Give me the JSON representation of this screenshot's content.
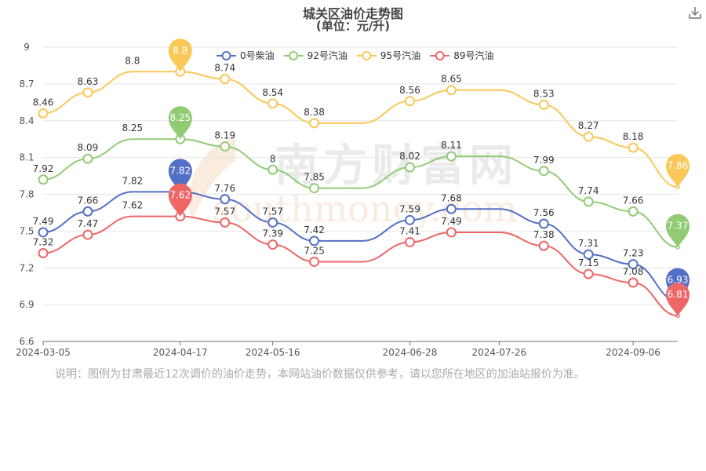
{
  "title": "城关区油价走势图",
  "subtitle": "(单位：元/升)",
  "note": "说明：图例为甘肃最近12次调价的油价走势，本网站油价数据仅供参考，请以您所在地区的加油站报价为准。",
  "watermark": {
    "cn": "南方财富网",
    "en": "southmoney.com"
  },
  "toolbar": {
    "download_icon": "download-icon"
  },
  "chart_data": {
    "type": "line",
    "smooth": true,
    "x": [
      "2024-03-05",
      "2024-03-19",
      "2024-04-02",
      "2024-04-17",
      "2024-05-01",
      "2024-05-16",
      "2024-05-29",
      "2024-06-13",
      "2024-06-28",
      "2024-07-11",
      "2024-07-26",
      "2024-08-09",
      "2024-08-23",
      "2024-09-06",
      "2024-09-20"
    ],
    "x_tick_labels": [
      "2024-03-05",
      "2024-04-17",
      "2024-05-16",
      "2024-06-28",
      "2024-07-26",
      "2024-09-06"
    ],
    "ylim": [
      6.6,
      9
    ],
    "y_ticks": [
      6.6,
      6.9,
      7.2,
      7.5,
      7.8,
      8.1,
      8.4,
      8.7,
      9
    ],
    "grid": true,
    "legend_position": "top-center",
    "series": [
      {
        "name": "0号柴油",
        "color": "#5470c6",
        "points": [
          [
            "2024-03-05",
            7.49
          ],
          [
            "2024-03-19",
            7.66
          ],
          [
            "2024-04-02",
            7.82
          ],
          [
            "2024-04-17",
            7.82
          ],
          [
            "2024-05-01",
            7.76
          ],
          [
            "2024-05-16",
            7.57
          ],
          [
            "2024-05-29",
            7.42
          ],
          [
            "2024-06-13",
            7.42
          ],
          [
            "2024-06-28",
            7.59
          ],
          [
            "2024-07-11",
            7.68
          ],
          [
            "2024-07-26",
            7.68
          ],
          [
            "2024-08-09",
            7.56
          ],
          [
            "2024-08-23",
            7.31
          ],
          [
            "2024-09-06",
            7.23
          ],
          [
            "2024-09-20",
            6.93
          ]
        ],
        "labels": [
          "7.49",
          "7.66",
          "7.82",
          "",
          "7.76",
          "7.57",
          "7.42",
          "",
          "7.59",
          "7.68",
          "",
          "7.56",
          "7.31",
          "7.23",
          ""
        ],
        "markers": [
          true,
          true,
          false,
          true,
          true,
          true,
          true,
          false,
          true,
          true,
          false,
          true,
          true,
          true,
          false
        ],
        "pin_label": "7.82",
        "pin_index": 3,
        "end_label": "6.93"
      },
      {
        "name": "92号汽油",
        "color": "#91cc75",
        "points": [
          [
            "2024-03-05",
            7.92
          ],
          [
            "2024-03-19",
            8.09
          ],
          [
            "2024-04-02",
            8.25
          ],
          [
            "2024-04-17",
            8.25
          ],
          [
            "2024-05-01",
            8.19
          ],
          [
            "2024-05-16",
            8.0
          ],
          [
            "2024-05-29",
            7.85
          ],
          [
            "2024-06-13",
            7.85
          ],
          [
            "2024-06-28",
            8.02
          ],
          [
            "2024-07-11",
            8.11
          ],
          [
            "2024-07-26",
            8.11
          ],
          [
            "2024-08-09",
            7.99
          ],
          [
            "2024-08-23",
            7.74
          ],
          [
            "2024-09-06",
            7.66
          ],
          [
            "2024-09-20",
            7.37
          ]
        ],
        "labels": [
          "7.92",
          "8.09",
          "8.25",
          "",
          "8.19",
          "8",
          "7.85",
          "",
          "8.02",
          "8.11",
          "",
          "7.99",
          "7.74",
          "7.66",
          ""
        ],
        "markers": [
          true,
          true,
          false,
          true,
          true,
          true,
          true,
          false,
          true,
          true,
          false,
          true,
          true,
          true,
          false
        ],
        "pin_label": "8.25",
        "pin_index": 3,
        "end_label": "7.37"
      },
      {
        "name": "95号汽油",
        "color": "#fac858",
        "points": [
          [
            "2024-03-05",
            8.46
          ],
          [
            "2024-03-19",
            8.63
          ],
          [
            "2024-04-02",
            8.8
          ],
          [
            "2024-04-17",
            8.8
          ],
          [
            "2024-05-01",
            8.74
          ],
          [
            "2024-05-16",
            8.54
          ],
          [
            "2024-05-29",
            8.38
          ],
          [
            "2024-06-13",
            8.38
          ],
          [
            "2024-06-28",
            8.56
          ],
          [
            "2024-07-11",
            8.65
          ],
          [
            "2024-07-26",
            8.65
          ],
          [
            "2024-08-09",
            8.53
          ],
          [
            "2024-08-23",
            8.27
          ],
          [
            "2024-09-06",
            8.18
          ],
          [
            "2024-09-20",
            7.86
          ]
        ],
        "labels": [
          "8.46",
          "8.63",
          "8.8",
          "",
          "8.74",
          "8.54",
          "8.38",
          "",
          "8.56",
          "8.65",
          "",
          "8.53",
          "8.27",
          "8.18",
          ""
        ],
        "markers": [
          true,
          true,
          false,
          true,
          true,
          true,
          true,
          false,
          true,
          true,
          false,
          true,
          true,
          true,
          false
        ],
        "pin_label": "8.8",
        "pin_index": 3,
        "end_label": "7.86"
      },
      {
        "name": "89号汽油",
        "color": "#ee6666",
        "points": [
          [
            "2024-03-05",
            7.32
          ],
          [
            "2024-03-19",
            7.47
          ],
          [
            "2024-04-02",
            7.62
          ],
          [
            "2024-04-17",
            7.62
          ],
          [
            "2024-05-01",
            7.57
          ],
          [
            "2024-05-16",
            7.39
          ],
          [
            "2024-05-29",
            7.25
          ],
          [
            "2024-06-13",
            7.25
          ],
          [
            "2024-06-28",
            7.41
          ],
          [
            "2024-07-11",
            7.49
          ],
          [
            "2024-07-26",
            7.49
          ],
          [
            "2024-08-09",
            7.38
          ],
          [
            "2024-08-23",
            7.15
          ],
          [
            "2024-09-06",
            7.08
          ],
          [
            "2024-09-20",
            6.81
          ]
        ],
        "labels": [
          "7.32",
          "7.47",
          "7.62",
          "",
          "7.57",
          "7.39",
          "7.25",
          "",
          "7.41",
          "7.49",
          "",
          "7.38",
          "7.15",
          "7.08",
          ""
        ],
        "markers": [
          true,
          true,
          false,
          true,
          true,
          true,
          true,
          false,
          true,
          true,
          false,
          true,
          true,
          true,
          false
        ],
        "pin_label": "7.62",
        "pin_index": 3,
        "end_label": "6.81"
      }
    ]
  }
}
